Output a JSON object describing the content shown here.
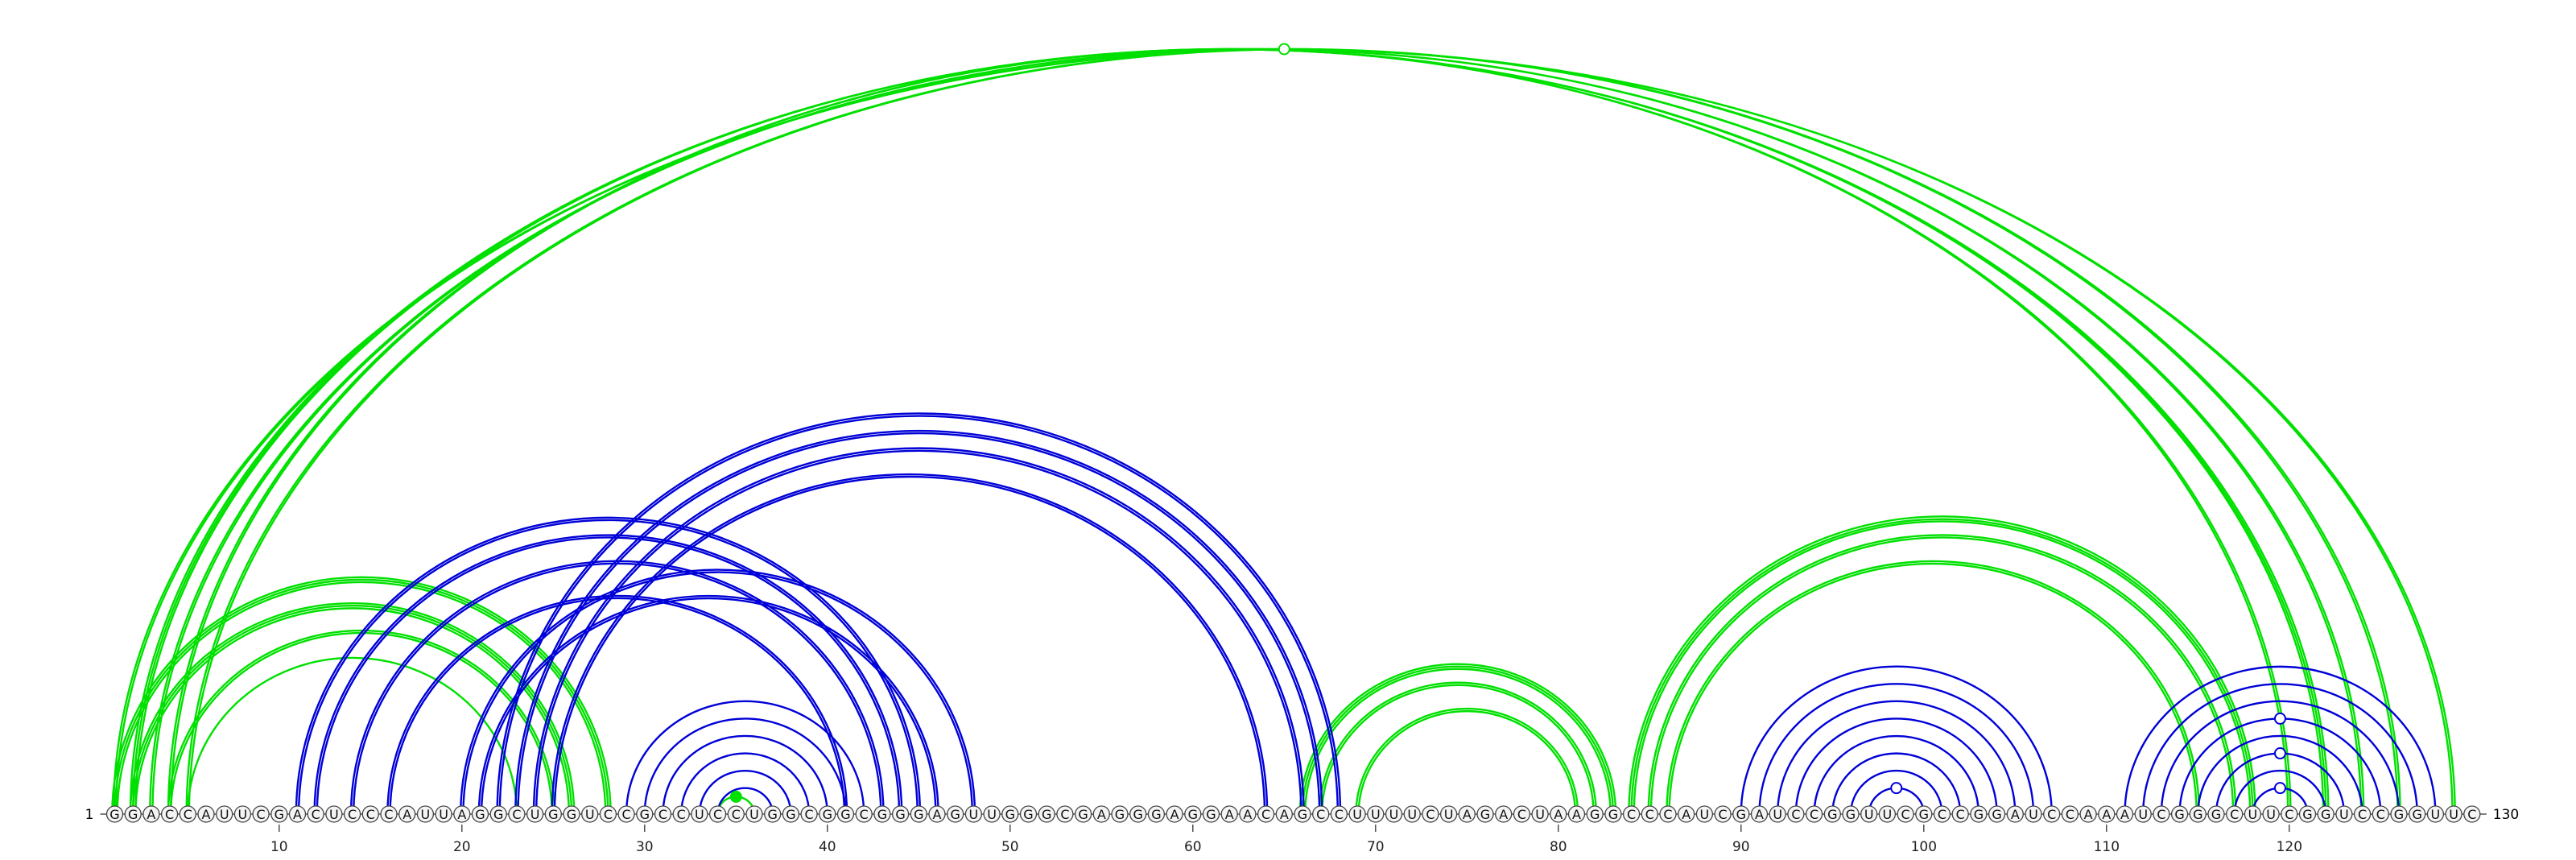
{
  "diagram": {
    "sequence": "GGACCAUUCGACUCCCAUUAGGCUGGUCCGCCUCCUGGCGGCGGGAGUUGGGCGAGGGAGGAACAGCCUUUUCUAGACUAAGGCCCAUCGAUCCGGUUCGCCGGAUCCAAAUCGGGCUUCGGUCCGGUUC",
    "length": 130,
    "start_label": "1",
    "end_label": "130",
    "tick_labels": [
      "10",
      "20",
      "30",
      "40",
      "50",
      "60",
      "70",
      "80",
      "90",
      "100",
      "110",
      "120"
    ],
    "tick_positions": [
      10,
      20,
      30,
      40,
      50,
      60,
      70,
      80,
      90,
      100,
      110,
      120
    ],
    "colors": {
      "green": "#00e000",
      "blue": "#0000d8"
    },
    "arc_groups": [
      {
        "color": "green",
        "i": 1,
        "j": 129,
        "count": 2
      },
      {
        "color": "green",
        "i": 2,
        "j": 122,
        "count": 3
      },
      {
        "color": "green",
        "i": 3,
        "j": 124,
        "count": 2
      },
      {
        "color": "green",
        "i": 4,
        "j": 120,
        "count": 2
      },
      {
        "color": "green",
        "i": 5,
        "j": 126,
        "count": 2
      },
      {
        "color": "green",
        "i": 1,
        "j": 28,
        "count": 3
      },
      {
        "color": "green",
        "i": 2,
        "j": 26,
        "count": 3
      },
      {
        "color": "green",
        "i": 4,
        "j": 25,
        "count": 2
      },
      {
        "color": "green",
        "i": 5,
        "j": 23,
        "count": 1
      },
      {
        "color": "green",
        "i": 66,
        "j": 83,
        "count": 3
      },
      {
        "color": "green",
        "i": 67,
        "j": 82,
        "count": 2
      },
      {
        "color": "green",
        "i": 69,
        "j": 81,
        "count": 2
      },
      {
        "color": "green",
        "i": 84,
        "j": 118,
        "count": 3
      },
      {
        "color": "green",
        "i": 85,
        "j": 117,
        "count": 2
      },
      {
        "color": "green",
        "i": 86,
        "j": 115,
        "count": 2
      },
      {
        "color": "green",
        "i": 34,
        "j": 36,
        "count": 1
      },
      {
        "color": "blue",
        "i": 11,
        "j": 45,
        "count": 2
      },
      {
        "color": "blue",
        "i": 12,
        "j": 44,
        "count": 2
      },
      {
        "color": "blue",
        "i": 14,
        "j": 43,
        "count": 2
      },
      {
        "color": "blue",
        "i": 16,
        "j": 41,
        "count": 2
      },
      {
        "color": "blue",
        "i": 22,
        "j": 68,
        "count": 2
      },
      {
        "color": "blue",
        "i": 23,
        "j": 67,
        "count": 2
      },
      {
        "color": "blue",
        "i": 24,
        "j": 66,
        "count": 2
      },
      {
        "color": "blue",
        "i": 25,
        "j": 64,
        "count": 2
      },
      {
        "color": "blue",
        "i": 20,
        "j": 48,
        "count": 2
      },
      {
        "color": "blue",
        "i": 21,
        "j": 46,
        "count": 2
      },
      {
        "color": "blue",
        "i": 29,
        "j": 42,
        "count": 1
      },
      {
        "color": "blue",
        "i": 30,
        "j": 41,
        "count": 1
      },
      {
        "color": "blue",
        "i": 31,
        "j": 40,
        "count": 1
      },
      {
        "color": "blue",
        "i": 32,
        "j": 39,
        "count": 1
      },
      {
        "color": "blue",
        "i": 33,
        "j": 38,
        "count": 1
      },
      {
        "color": "blue",
        "i": 34,
        "j": 37,
        "count": 1
      },
      {
        "color": "blue",
        "i": 90,
        "j": 107,
        "count": 1
      },
      {
        "color": "blue",
        "i": 91,
        "j": 106,
        "count": 1
      },
      {
        "color": "blue",
        "i": 92,
        "j": 105,
        "count": 1
      },
      {
        "color": "blue",
        "i": 93,
        "j": 104,
        "count": 1
      },
      {
        "color": "blue",
        "i": 94,
        "j": 103,
        "count": 1
      },
      {
        "color": "blue",
        "i": 95,
        "j": 102,
        "count": 1
      },
      {
        "color": "blue",
        "i": 96,
        "j": 101,
        "count": 1
      },
      {
        "color": "blue",
        "i": 97,
        "j": 100,
        "count": 1
      },
      {
        "color": "blue",
        "i": 111,
        "j": 128,
        "count": 1
      },
      {
        "color": "blue",
        "i": 112,
        "j": 127,
        "count": 1
      },
      {
        "color": "blue",
        "i": 113,
        "j": 126,
        "count": 1
      },
      {
        "color": "blue",
        "i": 114,
        "j": 125,
        "count": 1
      },
      {
        "color": "blue",
        "i": 115,
        "j": 124,
        "count": 1
      },
      {
        "color": "blue",
        "i": 116,
        "j": 123,
        "count": 1
      },
      {
        "color": "blue",
        "i": 117,
        "j": 122,
        "count": 1
      },
      {
        "color": "blue",
        "i": 118,
        "j": 121,
        "count": 1
      }
    ],
    "markers": [
      {
        "color": "green",
        "i": 1,
        "j": 129,
        "filled": false
      },
      {
        "color": "green",
        "i": 34,
        "j": 36,
        "filled": true
      },
      {
        "color": "blue",
        "i": 97,
        "j": 100,
        "filled": false
      },
      {
        "color": "blue",
        "i": 114,
        "j": 125,
        "filled": false
      },
      {
        "color": "blue",
        "i": 116,
        "j": 123,
        "filled": false
      },
      {
        "color": "blue",
        "i": 118,
        "j": 121,
        "filled": false
      }
    ]
  }
}
